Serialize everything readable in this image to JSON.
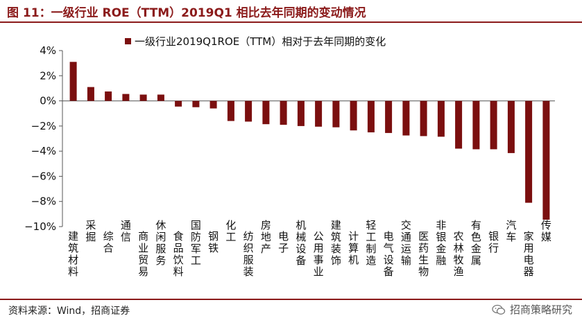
{
  "header": {
    "title": "图 11：一级行业 ROE（TTM）2019Q1 相比去年同期的变动情况"
  },
  "footer": {
    "source": "资料来源：Wind，招商证券",
    "brand": "招商策略研究",
    "brand_icon": "wechat-icon"
  },
  "colors": {
    "accent": "#8b1a1a",
    "bar": "#7b0f0f"
  },
  "chart_data": {
    "type": "bar",
    "title": "",
    "xlabel": "",
    "ylabel": "",
    "ylim": [
      -10,
      4
    ],
    "yticks": [
      4,
      2,
      0,
      -2,
      -4,
      -6,
      -8,
      -10
    ],
    "ytick_labels": [
      "4%",
      "2%",
      "0%",
      "−2%",
      "−4%",
      "−6%",
      "−8%",
      "−10%"
    ],
    "grid": false,
    "legend_position": "top-center",
    "categories": [
      "建筑材料",
      "采掘",
      "综合",
      "通信",
      "商业贸易",
      "休闲服务",
      "食品饮料",
      "国防军工",
      "钢铁",
      "化工",
      "纺织服装",
      "房地产",
      "电子",
      "机械设备",
      "公用事业",
      "建筑装饰",
      "计算机",
      "轻工制造",
      "电气设备",
      "交通运输",
      "医药生物",
      "非银金融",
      "农林牧渔",
      "有色金属",
      "银行",
      "汽车",
      "家用电器",
      "传媒"
    ],
    "series": [
      {
        "name": "一级行业2019Q1ROE（TTM）相对于去年同期的变化",
        "values": [
          3.1,
          1.1,
          0.75,
          0.55,
          0.5,
          0.5,
          -0.45,
          -0.5,
          -0.6,
          -1.6,
          -1.65,
          -1.85,
          -1.9,
          -2.0,
          -2.05,
          -2.1,
          -2.35,
          -2.5,
          -2.55,
          -2.75,
          -2.8,
          -2.85,
          -3.8,
          -3.85,
          -3.85,
          -4.15,
          -8.1,
          -9.45
        ]
      }
    ]
  }
}
